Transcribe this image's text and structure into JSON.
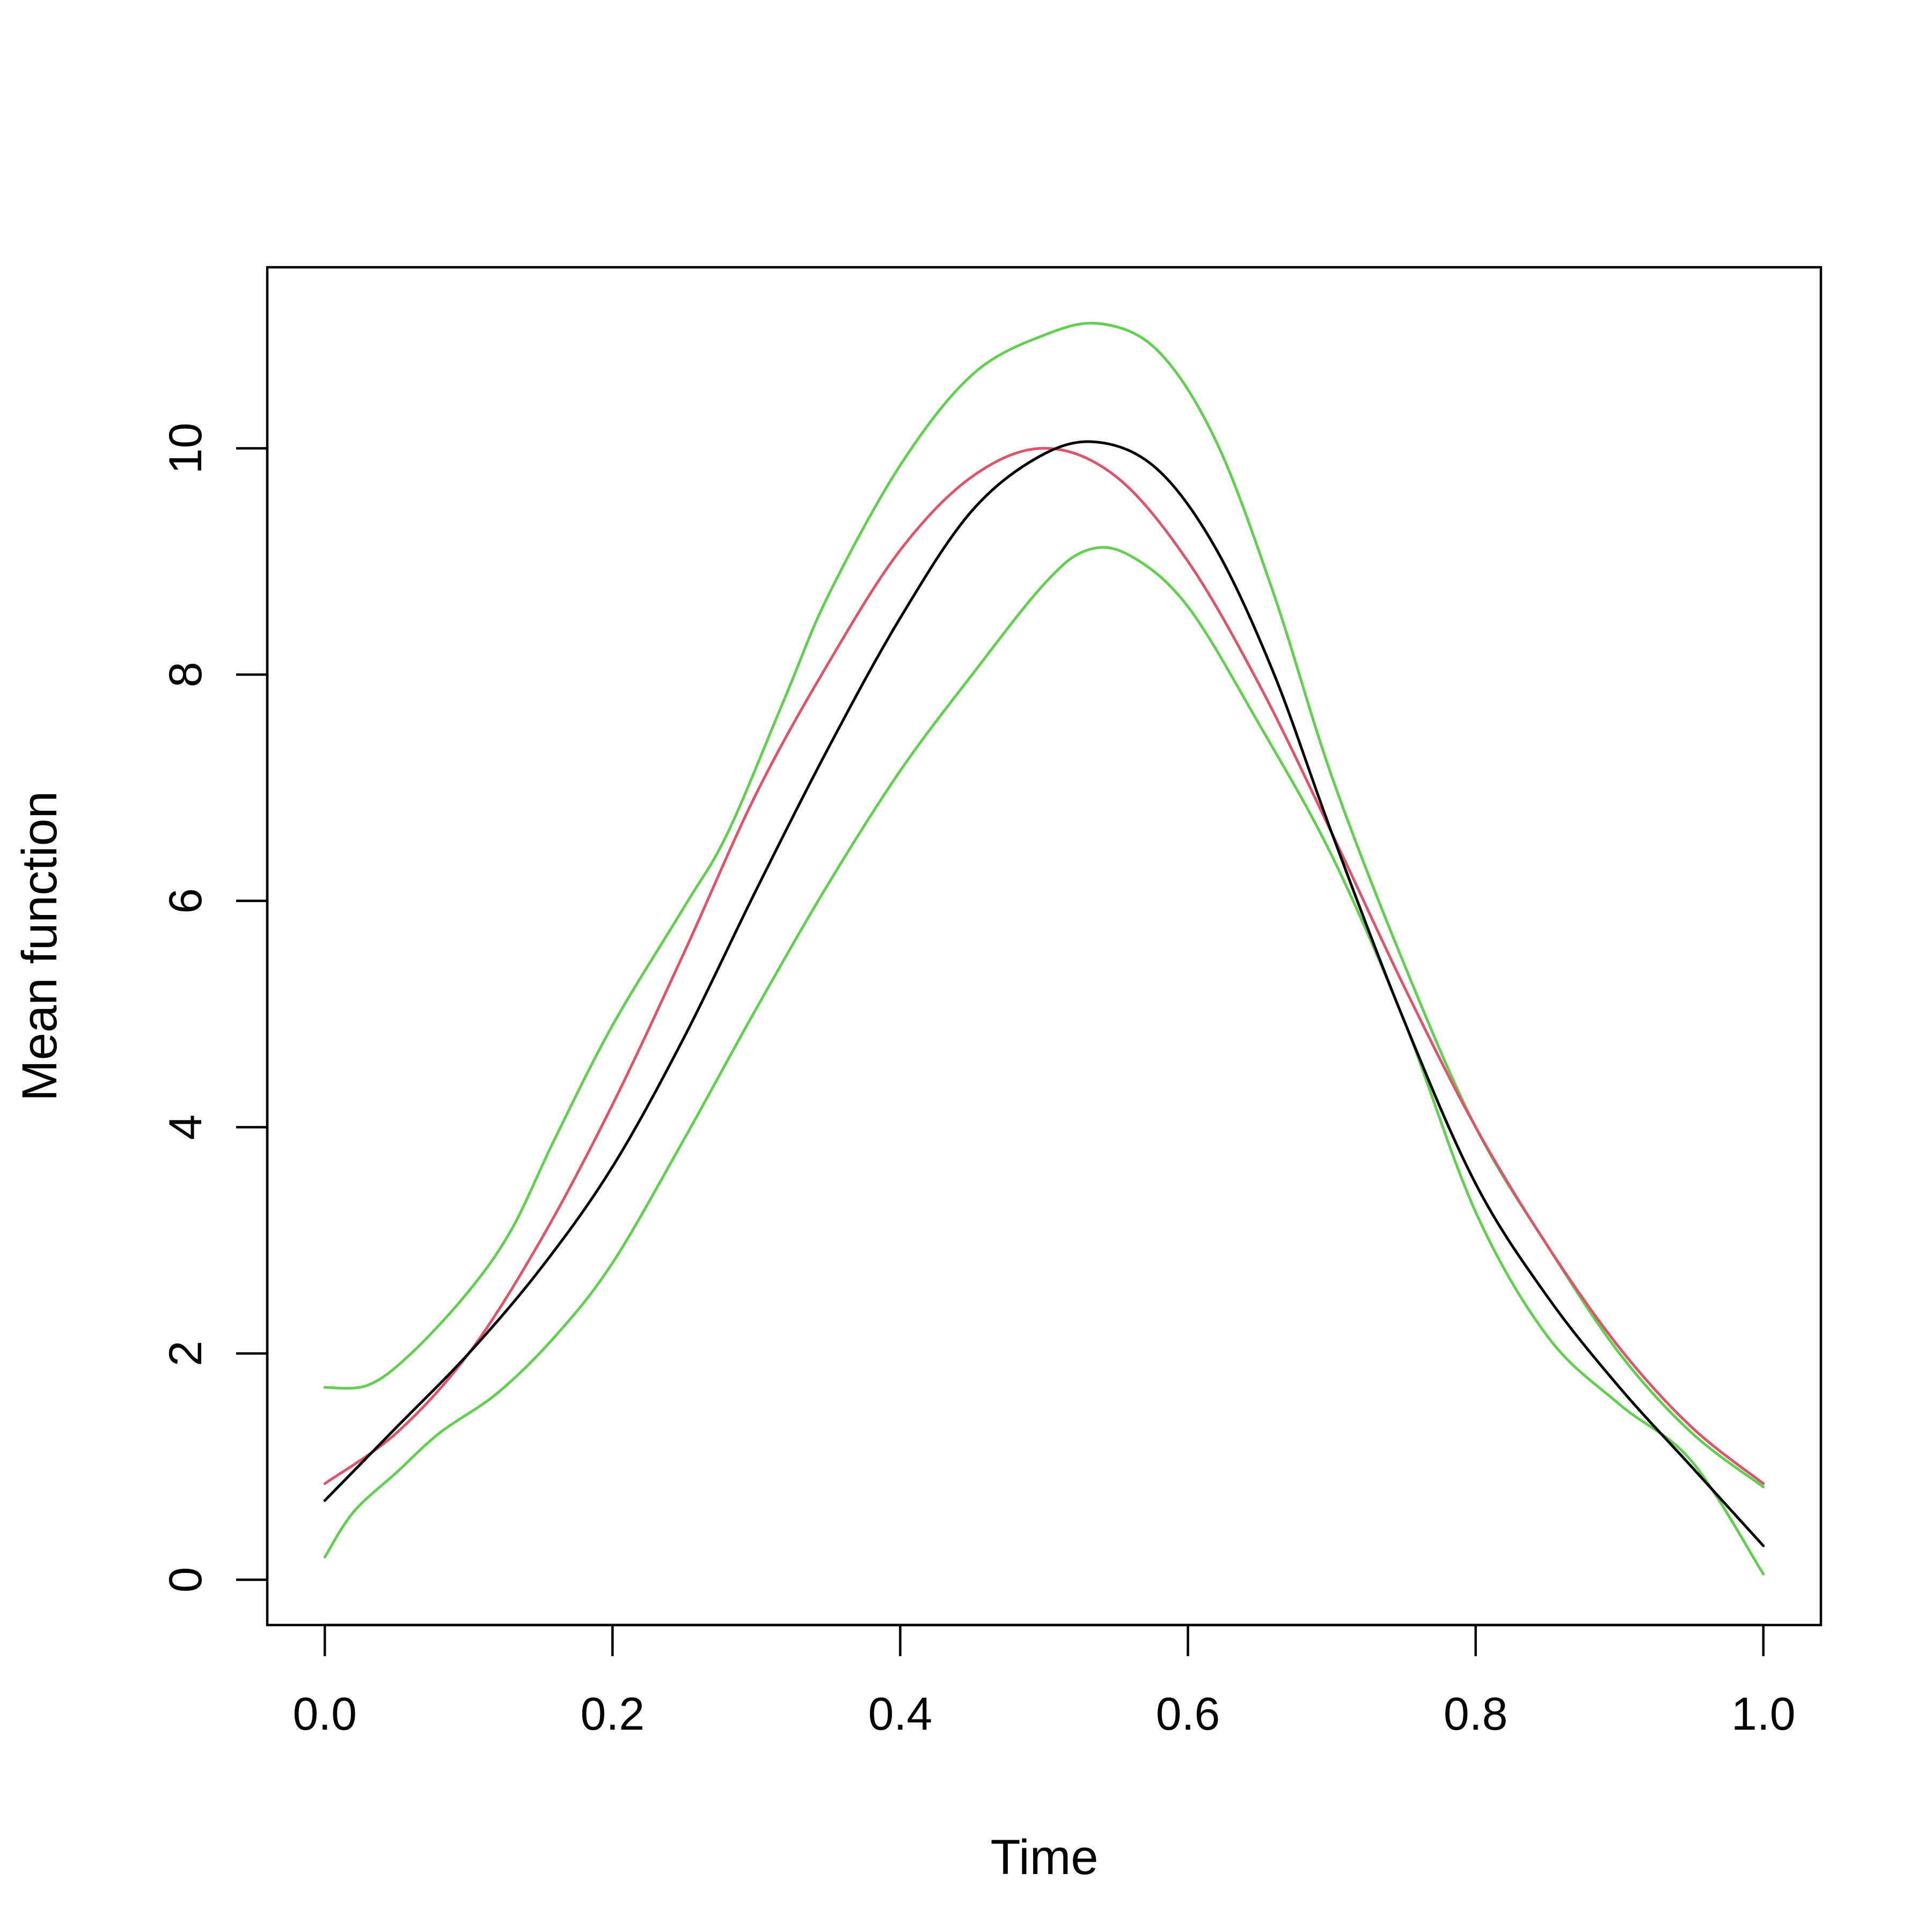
{
  "chart_data": {
    "type": "line",
    "xlabel": "Time",
    "ylabel": "Mean function",
    "xlim": [
      -0.04,
      1.04
    ],
    "ylim": [
      -0.4,
      11.6
    ],
    "x_ticks": [
      0.0,
      0.2,
      0.4,
      0.6,
      0.8,
      1.0
    ],
    "x_tick_labels": [
      "0.0",
      "0.2",
      "0.4",
      "0.6",
      "0.8",
      "1.0"
    ],
    "y_ticks": [
      0,
      2,
      4,
      6,
      8,
      10
    ],
    "y_tick_labels": [
      "0",
      "2",
      "4",
      "6",
      "8",
      "10"
    ],
    "grid": false,
    "legend": "none",
    "series": [
      {
        "color": "#000000",
        "x": [
          0.0,
          0.05,
          0.1,
          0.15,
          0.2,
          0.25,
          0.3,
          0.35,
          0.4,
          0.45,
          0.5,
          0.54,
          0.58,
          0.62,
          0.66,
          0.7,
          0.75,
          0.8,
          0.85,
          0.9,
          0.95,
          1.0
        ],
        "y": [
          0.7,
          1.35,
          2.0,
          2.75,
          3.65,
          4.8,
          6.1,
          7.35,
          8.5,
          9.45,
          9.95,
          10.05,
          9.8,
          9.1,
          8.0,
          6.6,
          4.95,
          3.5,
          2.5,
          1.7,
          1.0,
          0.3
        ]
      },
      {
        "color": "#df536b",
        "x": [
          0.0,
          0.05,
          0.1,
          0.15,
          0.2,
          0.25,
          0.3,
          0.35,
          0.4,
          0.45,
          0.5,
          0.55,
          0.6,
          0.65,
          0.7,
          0.75,
          0.8,
          0.85,
          0.9,
          0.95,
          1.0
        ],
        "y": [
          0.85,
          1.3,
          2.0,
          3.0,
          4.2,
          5.55,
          6.95,
          8.1,
          9.1,
          9.75,
          10.0,
          9.75,
          9.0,
          7.9,
          6.6,
          5.25,
          4.0,
          2.95,
          2.05,
          1.35,
          0.85
        ]
      },
      {
        "color": "#61d04f",
        "x": [
          0.0,
          0.03,
          0.06,
          0.1,
          0.13,
          0.16,
          0.2,
          0.25,
          0.28,
          0.32,
          0.35,
          0.4,
          0.45,
          0.5,
          0.54,
          0.58,
          0.62,
          0.66,
          0.7,
          0.75,
          0.8,
          0.85,
          0.9,
          0.95,
          1.0
        ],
        "y": [
          1.7,
          1.72,
          2.0,
          2.55,
          3.1,
          3.9,
          4.9,
          5.95,
          6.6,
          7.8,
          8.7,
          9.85,
          10.65,
          11.0,
          11.1,
          10.85,
          10.05,
          8.7,
          7.1,
          5.45,
          4.0,
          2.95,
          2.0,
          1.3,
          0.82
        ]
      },
      {
        "color": "#61d04f",
        "x": [
          0.0,
          0.02,
          0.05,
          0.08,
          0.12,
          0.16,
          0.2,
          0.25,
          0.3,
          0.35,
          0.4,
          0.45,
          0.5,
          0.53,
          0.56,
          0.6,
          0.65,
          0.7,
          0.75,
          0.8,
          0.85,
          0.9,
          0.95,
          1.0
        ],
        "y": [
          0.2,
          0.6,
          0.95,
          1.3,
          1.65,
          2.15,
          2.8,
          3.9,
          5.05,
          6.15,
          7.15,
          8.0,
          8.8,
          9.1,
          9.05,
          8.6,
          7.55,
          6.4,
          4.95,
          3.25,
          2.15,
          1.55,
          1.05,
          0.05
        ]
      }
    ]
  }
}
